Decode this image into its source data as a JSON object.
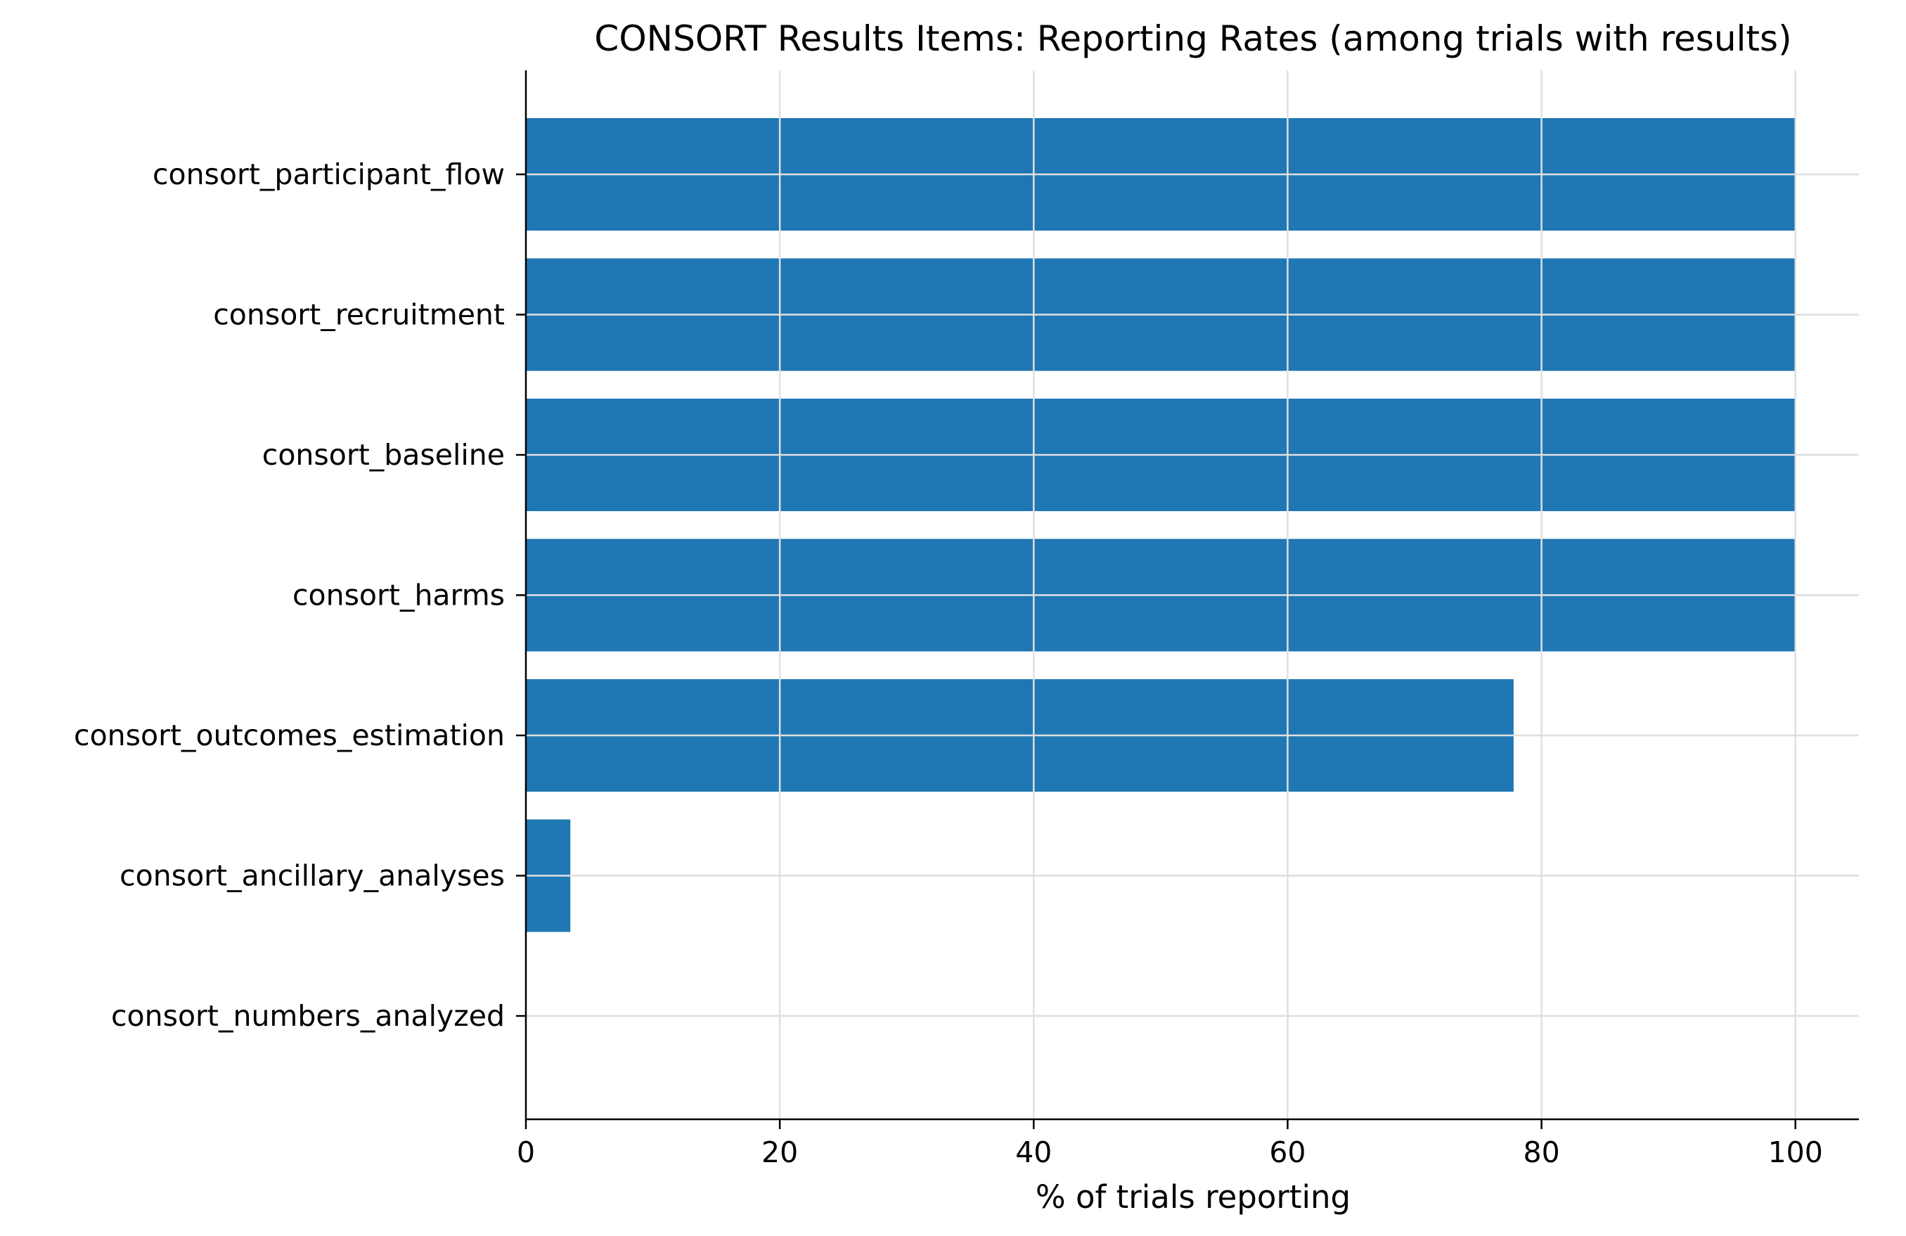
{
  "chart_data": {
    "type": "bar",
    "orientation": "horizontal",
    "title": "CONSORT Results Items: Reporting Rates (among trials with results)",
    "xlabel": "% of trials reporting",
    "ylabel": "",
    "categories": [
      "consort_participant_flow",
      "consort_recruitment",
      "consort_baseline",
      "consort_harms",
      "consort_outcomes_estimation",
      "consort_ancillary_analyses",
      "consort_numbers_analyzed"
    ],
    "values": [
      100,
      100,
      100,
      100,
      77.8,
      3.5,
      0
    ],
    "xlim": [
      0,
      105
    ],
    "xticks": [
      0,
      20,
      40,
      60,
      80,
      100
    ],
    "xtick_labels": [
      "0",
      "20",
      "40",
      "60",
      "80",
      "100"
    ],
    "grid": true,
    "legend": "none",
    "colors": {
      "bar": "#1f77b4",
      "grid": "#e0e0e0",
      "axis": "#000000"
    }
  }
}
